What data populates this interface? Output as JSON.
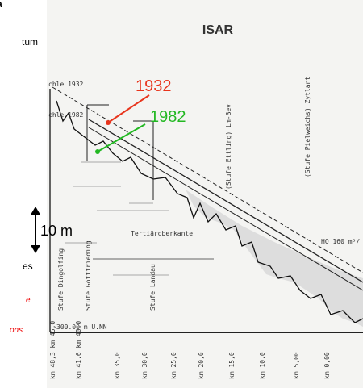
{
  "header": {
    "title": "ISAR"
  },
  "annotations": {
    "year_1932": "1932",
    "year_1982": "1982",
    "scale": "10 m"
  },
  "side_text": {
    "top": "a",
    "line1": "tum",
    "line2": "es",
    "note1": "e",
    "note2": "ons"
  },
  "scan_labels": {
    "left_1932": "chle 1932",
    "left_1982": "chle 1982",
    "datum": "300.00 m U.NN",
    "tertiary": "Tertiäroberkante",
    "hq": "HQ 160 m³/",
    "stages": [
      "Stufe Dingolfing",
      "Stufe Gottfrieding",
      "Stufe Landau",
      "(Stufe Ettling) Lm-Bev",
      "(Stufe Pielweichs) Zytlant"
    ]
  },
  "km_labels": [
    "km 48,3 km 45,0",
    "km 41,6 km 40,0",
    "km 35,0",
    "km 30,0",
    "km 25,0",
    "km 20,0",
    "km 15,0",
    "km 10,0",
    "km 5,00",
    "km 0,00"
  ]
}
